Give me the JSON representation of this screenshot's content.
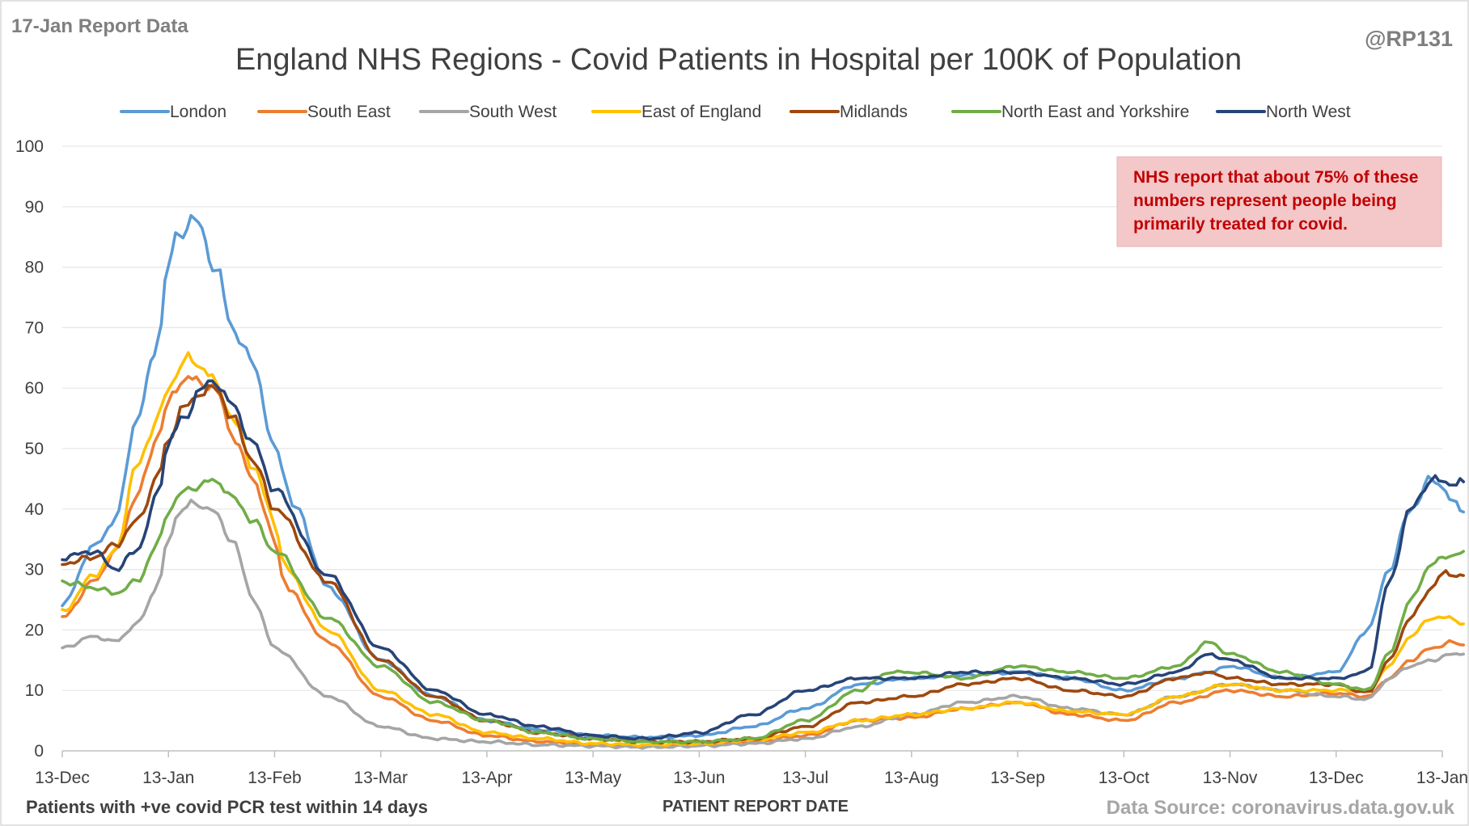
{
  "header": {
    "report_label": "17-Jan Report Data",
    "handle": "@RP131"
  },
  "footer": {
    "note": "Patients with +ve covid PCR test within 14 days",
    "source": "Data Source: coronavirus.data.gov.uk"
  },
  "annotation": {
    "lines": [
      "NHS report that about 75% of these",
      "numbers represent people being",
      "primarily treated for covid."
    ]
  },
  "colors": {
    "London": "#5b9bd5",
    "South East": "#ed7d31",
    "South West": "#a5a5a5",
    "East of England": "#ffc000",
    "Midlands": "#9e480e",
    "North East and Yorkshire": "#70ad47",
    "North West": "#264478"
  },
  "chart_data": {
    "type": "line",
    "title": "England NHS Regions - Covid Patients in Hospital per 100K of Population",
    "xlabel": "PATIENT REPORT DATE",
    "ylabel": "",
    "ylim": [
      0,
      100
    ],
    "yticks": [
      0,
      10,
      20,
      30,
      40,
      50,
      60,
      70,
      80,
      90,
      100
    ],
    "xtick_labels": [
      "13-Dec",
      "13-Jan",
      "13-Feb",
      "13-Mar",
      "13-Apr",
      "13-May",
      "13-Jun",
      "13-Jul",
      "13-Aug",
      "13-Sep",
      "13-Oct",
      "13-Nov",
      "13-Dec",
      "13-Jan"
    ],
    "x_unit": "months since 13-Dec (tick positions)",
    "grid": true,
    "legend_position": "top",
    "series": [
      {
        "name": "London",
        "points": [
          [
            0,
            24
          ],
          [
            0.3,
            34
          ],
          [
            0.5,
            38
          ],
          [
            0.7,
            55
          ],
          [
            0.9,
            67
          ],
          [
            1.0,
            81
          ],
          [
            1.1,
            86
          ],
          [
            1.25,
            88
          ],
          [
            1.45,
            80
          ],
          [
            1.6,
            70
          ],
          [
            1.8,
            64
          ],
          [
            2.0,
            50
          ],
          [
            2.2,
            40
          ],
          [
            2.5,
            27
          ],
          [
            3.0,
            15
          ],
          [
            3.5,
            9
          ],
          [
            4.0,
            5
          ],
          [
            4.5,
            3.5
          ],
          [
            5.0,
            2.5
          ],
          [
            5.5,
            2.2
          ],
          [
            6.0,
            2.5
          ],
          [
            6.5,
            4
          ],
          [
            7.0,
            7
          ],
          [
            7.5,
            11
          ],
          [
            8.0,
            12
          ],
          [
            8.5,
            12.5
          ],
          [
            9.0,
            13
          ],
          [
            9.5,
            12
          ],
          [
            10.0,
            10
          ],
          [
            10.5,
            12
          ],
          [
            10.8,
            13
          ],
          [
            11.0,
            14
          ],
          [
            11.5,
            12
          ],
          [
            12.0,
            13
          ],
          [
            12.3,
            20
          ],
          [
            12.5,
            30
          ],
          [
            12.7,
            40
          ],
          [
            12.9,
            45
          ],
          [
            13.0,
            44
          ],
          [
            13.1,
            41
          ],
          [
            13.2,
            39.5
          ]
        ]
      },
      {
        "name": "South East",
        "points": [
          [
            0,
            22
          ],
          [
            0.3,
            28
          ],
          [
            0.5,
            33
          ],
          [
            0.7,
            42
          ],
          [
            0.9,
            52
          ],
          [
            1.0,
            58
          ],
          [
            1.15,
            62
          ],
          [
            1.3,
            61
          ],
          [
            1.45,
            60
          ],
          [
            1.6,
            52
          ],
          [
            1.8,
            45
          ],
          [
            2.0,
            35
          ],
          [
            2.1,
            27
          ],
          [
            2.5,
            18
          ],
          [
            3.0,
            9
          ],
          [
            3.5,
            5
          ],
          [
            4.0,
            2.5
          ],
          [
            4.5,
            1.5
          ],
          [
            5.0,
            1.0
          ],
          [
            5.5,
            0.8
          ],
          [
            6.0,
            1.0
          ],
          [
            6.5,
            1.5
          ],
          [
            7.0,
            2.5
          ],
          [
            7.5,
            5
          ],
          [
            8.0,
            5.5
          ],
          [
            8.5,
            7
          ],
          [
            9.0,
            8
          ],
          [
            9.5,
            6
          ],
          [
            10.0,
            5
          ],
          [
            10.5,
            8
          ],
          [
            11.0,
            10
          ],
          [
            11.5,
            9
          ],
          [
            12.0,
            9.5
          ],
          [
            12.3,
            9
          ],
          [
            12.5,
            12
          ],
          [
            12.7,
            15
          ],
          [
            12.9,
            17
          ],
          [
            13.1,
            18
          ],
          [
            13.2,
            17.5
          ]
        ]
      },
      {
        "name": "South West",
        "points": [
          [
            0,
            17
          ],
          [
            0.3,
            19
          ],
          [
            0.5,
            18
          ],
          [
            0.7,
            21
          ],
          [
            0.9,
            27
          ],
          [
            1.0,
            35
          ],
          [
            1.1,
            40
          ],
          [
            1.25,
            41
          ],
          [
            1.4,
            40
          ],
          [
            1.6,
            35
          ],
          [
            1.8,
            25
          ],
          [
            2.0,
            17
          ],
          [
            2.5,
            9
          ],
          [
            3.0,
            4
          ],
          [
            3.5,
            2
          ],
          [
            4.0,
            1.5
          ],
          [
            4.5,
            1.0
          ],
          [
            5.0,
            0.8
          ],
          [
            5.5,
            0.6
          ],
          [
            6.0,
            0.8
          ],
          [
            6.5,
            1.2
          ],
          [
            7.0,
            2
          ],
          [
            7.5,
            4
          ],
          [
            8.0,
            6
          ],
          [
            8.5,
            8
          ],
          [
            9.0,
            9
          ],
          [
            9.5,
            7
          ],
          [
            10.0,
            6
          ],
          [
            10.5,
            9
          ],
          [
            11.0,
            11
          ],
          [
            11.5,
            10
          ],
          [
            12.0,
            9
          ],
          [
            12.3,
            8.5
          ],
          [
            12.5,
            12
          ],
          [
            12.7,
            14
          ],
          [
            12.9,
            15
          ],
          [
            13.1,
            16
          ],
          [
            13.2,
            16
          ]
        ]
      },
      {
        "name": "East of England",
        "points": [
          [
            0,
            23
          ],
          [
            0.3,
            29
          ],
          [
            0.5,
            33
          ],
          [
            0.7,
            47
          ],
          [
            0.9,
            55
          ],
          [
            1.0,
            60
          ],
          [
            1.15,
            65
          ],
          [
            1.3,
            64
          ],
          [
            1.45,
            61
          ],
          [
            1.6,
            55
          ],
          [
            1.8,
            47
          ],
          [
            2.0,
            38
          ],
          [
            2.1,
            30
          ],
          [
            2.5,
            20
          ],
          [
            3.0,
            10
          ],
          [
            3.5,
            6
          ],
          [
            4.0,
            3
          ],
          [
            4.5,
            2
          ],
          [
            5.0,
            1.2
          ],
          [
            5.5,
            1.0
          ],
          [
            6.0,
            1.2
          ],
          [
            6.5,
            1.8
          ],
          [
            7.0,
            3
          ],
          [
            7.5,
            5
          ],
          [
            8.0,
            6
          ],
          [
            8.5,
            7
          ],
          [
            9.0,
            8
          ],
          [
            9.5,
            6.5
          ],
          [
            10.0,
            6
          ],
          [
            10.5,
            9
          ],
          [
            11.0,
            11
          ],
          [
            11.5,
            10
          ],
          [
            12.0,
            10
          ],
          [
            12.3,
            10
          ],
          [
            12.5,
            14
          ],
          [
            12.7,
            19
          ],
          [
            12.9,
            22
          ],
          [
            13.1,
            22
          ],
          [
            13.2,
            21
          ]
        ]
      },
      {
        "name": "Midlands",
        "points": [
          [
            0,
            31
          ],
          [
            0.3,
            32
          ],
          [
            0.5,
            34
          ],
          [
            0.7,
            38
          ],
          [
            0.9,
            45
          ],
          [
            1.0,
            52
          ],
          [
            1.15,
            57
          ],
          [
            1.3,
            59
          ],
          [
            1.45,
            60
          ],
          [
            1.6,
            55
          ],
          [
            1.8,
            48
          ],
          [
            2.0,
            40
          ],
          [
            2.5,
            28
          ],
          [
            3.0,
            15
          ],
          [
            3.5,
            9
          ],
          [
            4.0,
            5
          ],
          [
            4.5,
            3
          ],
          [
            5.0,
            2
          ],
          [
            5.5,
            1.5
          ],
          [
            6.0,
            1.5
          ],
          [
            6.5,
            2
          ],
          [
            7.0,
            4
          ],
          [
            7.5,
            8
          ],
          [
            8.0,
            9
          ],
          [
            8.5,
            11
          ],
          [
            9.0,
            12
          ],
          [
            9.5,
            10
          ],
          [
            10.0,
            9
          ],
          [
            10.5,
            12
          ],
          [
            10.8,
            13
          ],
          [
            11.0,
            12
          ],
          [
            11.5,
            11
          ],
          [
            12.0,
            11
          ],
          [
            12.3,
            9.5
          ],
          [
            12.5,
            15
          ],
          [
            12.7,
            22
          ],
          [
            12.9,
            27
          ],
          [
            13.0,
            29.5
          ],
          [
            13.1,
            29
          ],
          [
            13.2,
            29
          ]
        ]
      },
      {
        "name": "North East and Yorkshire",
        "points": [
          [
            0,
            28
          ],
          [
            0.3,
            27
          ],
          [
            0.5,
            26
          ],
          [
            0.7,
            28
          ],
          [
            0.9,
            34
          ],
          [
            1.0,
            40
          ],
          [
            1.15,
            43
          ],
          [
            1.3,
            44
          ],
          [
            1.45,
            45
          ],
          [
            1.6,
            42
          ],
          [
            1.8,
            38
          ],
          [
            2.0,
            33
          ],
          [
            2.5,
            22
          ],
          [
            3.0,
            14
          ],
          [
            3.5,
            8
          ],
          [
            4.0,
            5
          ],
          [
            4.5,
            3
          ],
          [
            5.0,
            2
          ],
          [
            5.5,
            1.5
          ],
          [
            6.0,
            1.5
          ],
          [
            6.5,
            2
          ],
          [
            7.0,
            5
          ],
          [
            7.5,
            10
          ],
          [
            7.8,
            13
          ],
          [
            8.0,
            13
          ],
          [
            8.5,
            12
          ],
          [
            9.0,
            14
          ],
          [
            9.5,
            13
          ],
          [
            10.0,
            12
          ],
          [
            10.5,
            14
          ],
          [
            10.8,
            18
          ],
          [
            11.0,
            16
          ],
          [
            11.5,
            13
          ],
          [
            12.0,
            11
          ],
          [
            12.3,
            10
          ],
          [
            12.5,
            16
          ],
          [
            12.7,
            25
          ],
          [
            12.9,
            31
          ],
          [
            13.1,
            32.5
          ],
          [
            13.2,
            33
          ]
        ]
      },
      {
        "name": "North West",
        "points": [
          [
            0,
            32
          ],
          [
            0.3,
            33
          ],
          [
            0.5,
            30
          ],
          [
            0.7,
            33
          ],
          [
            0.9,
            42
          ],
          [
            1.0,
            52
          ],
          [
            1.15,
            55
          ],
          [
            1.3,
            60
          ],
          [
            1.45,
            61
          ],
          [
            1.6,
            57
          ],
          [
            1.8,
            51
          ],
          [
            2.0,
            43
          ],
          [
            2.5,
            29
          ],
          [
            3.0,
            17
          ],
          [
            3.5,
            10
          ],
          [
            4.0,
            6
          ],
          [
            4.5,
            4
          ],
          [
            5.0,
            2.5
          ],
          [
            5.5,
            2
          ],
          [
            6.0,
            3
          ],
          [
            6.5,
            6
          ],
          [
            7.0,
            10
          ],
          [
            7.5,
            12
          ],
          [
            8.0,
            12
          ],
          [
            8.5,
            13
          ],
          [
            9.0,
            13
          ],
          [
            9.5,
            12
          ],
          [
            10.0,
            11
          ],
          [
            10.5,
            13
          ],
          [
            10.8,
            16
          ],
          [
            11.0,
            15
          ],
          [
            11.5,
            12
          ],
          [
            12.0,
            12
          ],
          [
            12.3,
            13
          ],
          [
            12.5,
            28
          ],
          [
            12.7,
            40
          ],
          [
            12.9,
            45
          ],
          [
            13.0,
            44.5
          ],
          [
            13.1,
            44
          ],
          [
            13.2,
            44.5
          ]
        ]
      }
    ]
  }
}
